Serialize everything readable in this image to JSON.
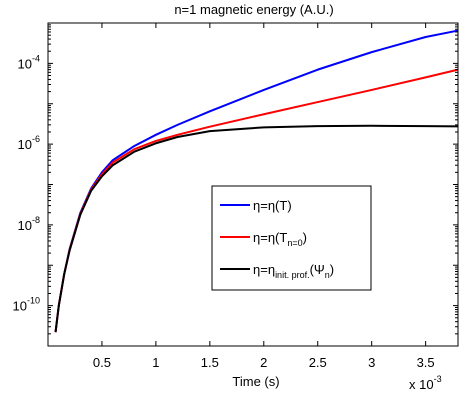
{
  "chart_data": {
    "type": "line",
    "title": "n=1 magnetic energy (A.U.)",
    "xlabel": "Time (s)",
    "ylabel": "",
    "x_multiplier_label": "x 10",
    "x_multiplier_exponent": "-3",
    "xlim": [
      0,
      3.8
    ],
    "ylim": [
      1e-11,
      0.001
    ],
    "yscale": "log",
    "x_ticks": [
      0.5,
      1,
      1.5,
      2,
      2.5,
      3,
      3.5
    ],
    "x_tick_labels": [
      "0.5",
      "1",
      "1.5",
      "2",
      "2.5",
      "3",
      "3.5"
    ],
    "y_tick_exponents": [
      -10,
      -8,
      -6,
      -4
    ],
    "y_tick_base": "10",
    "grid": false,
    "legend_position": "center-right",
    "series": [
      {
        "name": "η=η(T)",
        "name_parts": [
          {
            "t": "η=η(T)",
            "sub": false
          }
        ],
        "color": "#0000ff",
        "x": [
          0.07,
          0.1,
          0.15,
          0.2,
          0.3,
          0.4,
          0.5,
          0.6,
          0.8,
          1.0,
          1.2,
          1.5,
          2.0,
          2.5,
          3.0,
          3.5,
          3.8
        ],
        "y": [
          2.2e-11,
          1e-10,
          6e-10,
          2.5e-09,
          2e-08,
          8e-08,
          2e-07,
          4e-07,
          9e-07,
          1.7e-06,
          3e-06,
          6.5e-06,
          2.2e-05,
          7e-05,
          0.00019,
          0.00045,
          0.00065
        ]
      },
      {
        "name": "η=η(Tn=0)",
        "name_parts": [
          {
            "t": "η=η(T",
            "sub": false
          },
          {
            "t": "n=0",
            "sub": true
          },
          {
            "t": ")",
            "sub": false
          }
        ],
        "color": "#ff0000",
        "x": [
          0.07,
          0.1,
          0.15,
          0.2,
          0.3,
          0.4,
          0.5,
          0.6,
          0.8,
          1.0,
          1.2,
          1.5,
          2.0,
          2.5,
          3.0,
          3.5,
          3.8
        ],
        "y": [
          2.2e-11,
          1e-10,
          6e-10,
          2.4e-09,
          1.9e-08,
          7.5e-08,
          1.8e-07,
          3.5e-07,
          7.5e-07,
          1.2e-06,
          1.7e-06,
          2.7e-06,
          5.5e-06,
          1.1e-05,
          2.2e-05,
          4.5e-05,
          7e-05
        ]
      },
      {
        "name": "η=ηinit. prof.(Ψn)",
        "name_parts": [
          {
            "t": "η=η",
            "sub": false
          },
          {
            "t": "init. prof.",
            "sub": true
          },
          {
            "t": "(Ψ",
            "sub": false
          },
          {
            "t": "n",
            "sub": true
          },
          {
            "t": ")",
            "sub": false
          }
        ],
        "color": "#000000",
        "x": [
          0.07,
          0.1,
          0.15,
          0.2,
          0.3,
          0.4,
          0.5,
          0.6,
          0.8,
          1.0,
          1.2,
          1.5,
          2.0,
          2.5,
          3.0,
          3.5,
          3.8
        ],
        "y": [
          2.2e-11,
          1e-10,
          6e-10,
          2.3e-09,
          1.8e-08,
          7e-08,
          1.6e-07,
          3e-07,
          6.5e-07,
          1.05e-06,
          1.5e-06,
          2.1e-06,
          2.6e-06,
          2.8e-06,
          2.85e-06,
          2.8e-06,
          2.75e-06
        ]
      }
    ]
  }
}
